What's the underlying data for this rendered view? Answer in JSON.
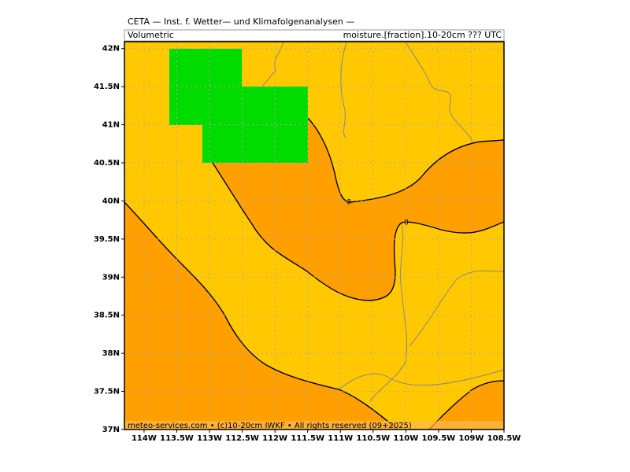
{
  "map": {
    "title": "CETA — Inst. f. Wetter— und Klimafolgenanalysen —",
    "subtitle_left": "Volumetric",
    "subtitle_right": "moisture.[fraction].10-20cm ??? UTC",
    "xlim": [
      -114.3,
      -108.5
    ],
    "ylim": [
      37,
      42.09
    ],
    "xticks": [
      {
        "value": -114,
        "label": "114W"
      },
      {
        "value": -113.5,
        "label": "113.5W"
      },
      {
        "value": -113,
        "label": "113W"
      },
      {
        "value": -112.5,
        "label": "112.5W"
      },
      {
        "value": -112,
        "label": "112W"
      },
      {
        "value": -111.5,
        "label": "111.5W"
      },
      {
        "value": -111,
        "label": "111W"
      },
      {
        "value": -110.5,
        "label": "110.5W"
      },
      {
        "value": -110,
        "label": "110W"
      },
      {
        "value": -109.5,
        "label": "109.5W"
      },
      {
        "value": -109,
        "label": "109W"
      },
      {
        "value": -108.5,
        "label": "108.5W"
      }
    ],
    "yticks": [
      {
        "value": 37,
        "label": "37N"
      },
      {
        "value": 37.5,
        "label": "37.5N"
      },
      {
        "value": 38,
        "label": "38N"
      },
      {
        "value": 38.5,
        "label": "38.5N"
      },
      {
        "value": 39,
        "label": "39N"
      },
      {
        "value": 39.5,
        "label": "39.5N"
      },
      {
        "value": 40,
        "label": "40N"
      },
      {
        "value": 40.5,
        "label": "40.5N"
      },
      {
        "value": 41,
        "label": "41N"
      },
      {
        "value": 41.5,
        "label": "41.5N"
      },
      {
        "value": 42,
        "label": "42N"
      }
    ],
    "contour_labels": [
      "8",
      "8"
    ],
    "footer": "meteo-services.com • (c)10-20cm IWKF • All rights reserved (09+2025)"
  }
}
